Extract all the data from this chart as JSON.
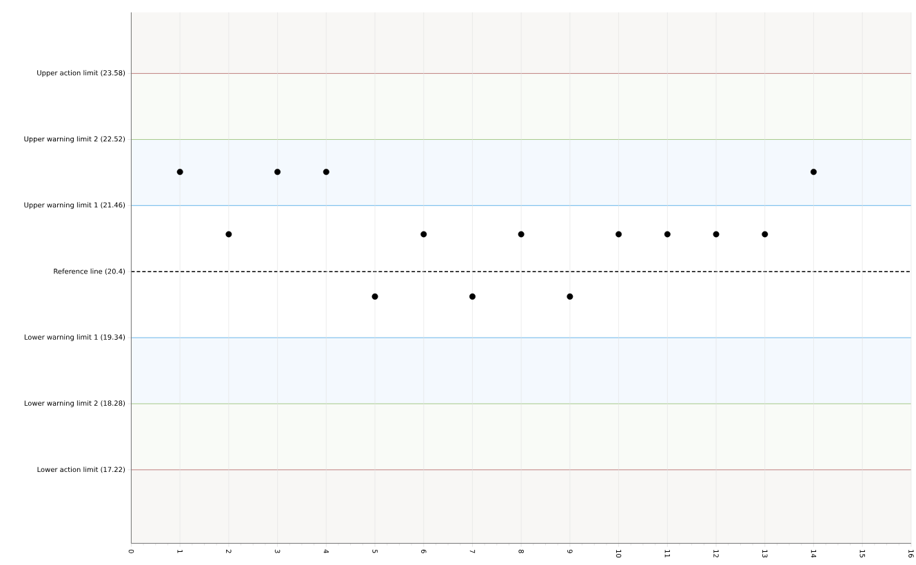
{
  "chart_data": {
    "type": "scatter",
    "x": [
      1,
      2,
      3,
      4,
      5,
      6,
      7,
      8,
      9,
      10,
      11,
      12,
      13,
      14
    ],
    "series": [
      {
        "color": "#000000",
        "values": [
          22,
          21,
          22,
          22,
          20,
          21,
          20,
          21,
          20,
          21,
          21,
          21,
          21,
          22
        ]
      }
    ],
    "marker": "circle",
    "xlim": [
      0,
      16
    ],
    "xticks": [
      0,
      1,
      2,
      3,
      4,
      5,
      6,
      7,
      8,
      9,
      10,
      11,
      12,
      13,
      14,
      15,
      16
    ],
    "ylim": [
      16.04,
      24.56
    ],
    "yticks": [
      {
        "value": 23.58,
        "label": "Upper action limit (23.58)"
      },
      {
        "value": 22.52,
        "label": "Upper warning limit 2 (22.52)"
      },
      {
        "value": 21.46,
        "label": "Upper warning limit 1 (21.46)"
      },
      {
        "value": 20.4,
        "label": "Reference line (20.4)"
      },
      {
        "value": 19.34,
        "label": "Lower warning limit 1 (19.34)"
      },
      {
        "value": 18.28,
        "label": "Lower warning limit 2 (18.28)"
      },
      {
        "value": 17.22,
        "label": "Lower action limit (17.22)"
      }
    ],
    "ref_lines": [
      {
        "axis": "y",
        "value": 23.58,
        "color": "#b87070",
        "line_style": "solid"
      },
      {
        "axis": "y",
        "value": 22.52,
        "color": "#9cc47c",
        "line_style": "solid"
      },
      {
        "axis": "y",
        "value": 21.46,
        "color": "#5aaee8",
        "line_style": "solid"
      },
      {
        "axis": "y",
        "value": 20.4,
        "color": "#000000",
        "line_style": "dashed"
      },
      {
        "axis": "y",
        "value": 19.34,
        "color": "#5aaee8",
        "line_style": "solid"
      },
      {
        "axis": "y",
        "value": 18.28,
        "color": "#9cc47c",
        "line_style": "solid"
      },
      {
        "axis": "y",
        "value": 17.22,
        "color": "#b87070",
        "line_style": "solid"
      }
    ],
    "bands": [
      {
        "axis": "y",
        "from": 23.58,
        "to": 24.56,
        "color": "#f8f7f5"
      },
      {
        "axis": "y",
        "from": 22.52,
        "to": 23.58,
        "color": "#f9fbf7"
      },
      {
        "axis": "y",
        "from": 21.46,
        "to": 22.52,
        "color": "#f4f9fe"
      },
      {
        "axis": "y",
        "from": 18.28,
        "to": 19.34,
        "color": "#f4f9fe"
      },
      {
        "axis": "y",
        "from": 17.22,
        "to": 18.28,
        "color": "#f9fbf7"
      },
      {
        "axis": "y",
        "from": 16.04,
        "to": 17.22,
        "color": "#f8f7f5"
      }
    ],
    "grid": "x"
  }
}
